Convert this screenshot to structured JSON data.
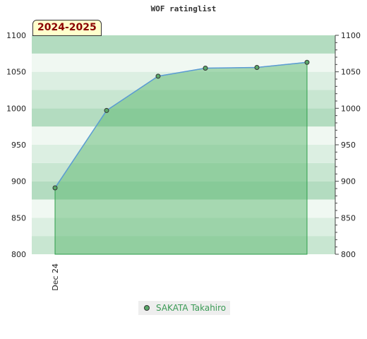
{
  "chart_data": {
    "type": "area",
    "title": "WOF ratinglist",
    "season_label": "2024-2025",
    "x_tick_labels": [
      "Dec 24"
    ],
    "series": [
      {
        "name": "SAKATA Takahiro",
        "values": [
          891,
          997,
          1044,
          1055,
          1056,
          1063
        ]
      }
    ],
    "ylim": [
      800,
      1100
    ],
    "yticks": [
      800,
      850,
      900,
      950,
      1000,
      1050,
      1100
    ],
    "colors": {
      "line": "#5b9bd5",
      "fill": "#5cb870",
      "marker": "#5aa86a",
      "band_dark": "#b3dcc0",
      "band_light": "#f0f8f2"
    },
    "legend_position": "bottom"
  }
}
